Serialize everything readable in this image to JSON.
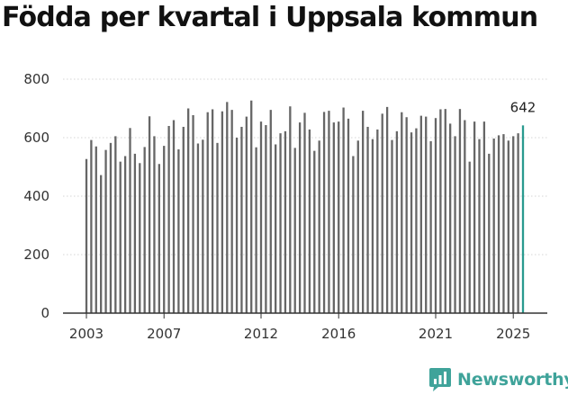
{
  "title": "Födda per kvartal i Uppsala kommun",
  "brand": {
    "name": "Newsworthy",
    "logo_icon": "bar-chart-logo-icon",
    "color": "#3fa39a"
  },
  "chart_data": {
    "type": "bar",
    "title": "Födda per kvartal i Uppsala kommun",
    "xlabel": "",
    "ylabel": "",
    "ylim": [
      0,
      800
    ],
    "yticks": [
      "0",
      "200",
      "400",
      "600",
      "800"
    ],
    "xticks": [
      "2003",
      "2007",
      "2012",
      "2016",
      "2021",
      "2025"
    ],
    "grid": true,
    "bar_color": "#666666",
    "highlight_color": "#2a9a8f",
    "highlight_label": "642",
    "series": [
      {
        "name": "Födda",
        "values": [
          527,
          592,
          570,
          472,
          558,
          582,
          605,
          518,
          537,
          633,
          545,
          513,
          568,
          673,
          605,
          510,
          572,
          640,
          660,
          560,
          637,
          700,
          677,
          580,
          593,
          687,
          697,
          582,
          690,
          722,
          695,
          600,
          637,
          672,
          727,
          567,
          655,
          643,
          695,
          577,
          615,
          622,
          707,
          565,
          652,
          685,
          628,
          555,
          590,
          688,
          692,
          652,
          655,
          703,
          665,
          537,
          590,
          692,
          637,
          595,
          628,
          682,
          705,
          592,
          622,
          687,
          670,
          618,
          632,
          675,
          672,
          588,
          667,
          697,
          698,
          648,
          605,
          698,
          660,
          518,
          655,
          595,
          655,
          545,
          597,
          608,
          612,
          590,
          605,
          615,
          642
        ]
      }
    ]
  }
}
